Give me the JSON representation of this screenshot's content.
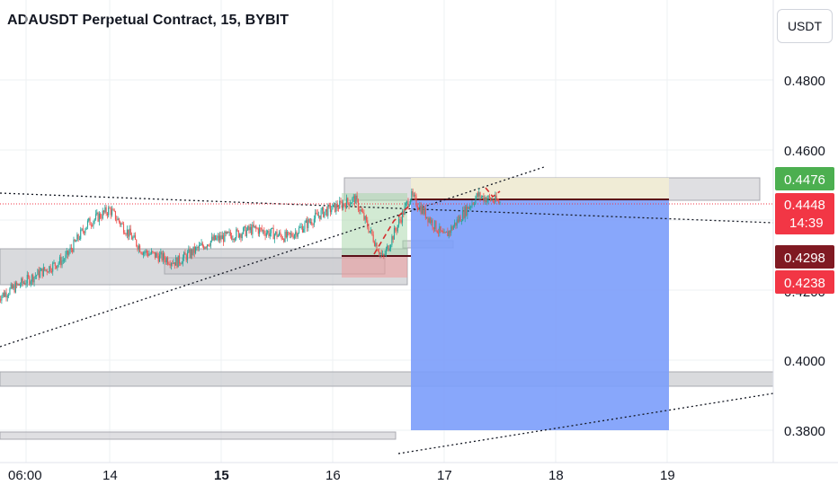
{
  "header": {
    "title": "ADAUSDT Perpetual Contract, 15, BYBIT"
  },
  "currency_button": {
    "label": "USDT"
  },
  "badges": {
    "green": {
      "label": "0.4476",
      "color": "#4caf50"
    },
    "current": {
      "label": "0.4448",
      "timer": "14:39",
      "color": "#f23645"
    },
    "dark": {
      "label": "0.4298",
      "color": "#801922"
    },
    "red": {
      "label": "0.4238",
      "color": "#f23645"
    }
  },
  "chart_data": {
    "type": "candlestick",
    "symbol": "ADAUSDT",
    "exchange": "BYBIT",
    "interval": "15",
    "y_axis": {
      "ticks": [
        0.48,
        0.46,
        0.4,
        0.38
      ],
      "tick_labels": [
        "0.4800",
        "0.4600",
        "0.4000",
        "0.3800"
      ]
    },
    "x_axis": {
      "tick_labels": [
        "06:00",
        "14",
        "15",
        "16",
        "17",
        "18",
        "19"
      ],
      "bold_label": "15"
    },
    "price_levels": {
      "green_label": 0.4476,
      "last_price": 0.4448,
      "dark_level": 0.4298,
      "red_level": 0.4238
    },
    "colors": {
      "up": "#26a69a",
      "down": "#ef5350",
      "position_loss": "#7b9dfb",
      "position_profit": "#f3efd4",
      "zone": "#c9cace"
    },
    "candles_approx": [
      {
        "day": 13.35,
        "close": 0.4245
      },
      {
        "day": 13.6,
        "close": 0.429
      },
      {
        "day": 13.8,
        "close": 0.439
      },
      {
        "day": 14.0,
        "close": 0.443
      },
      {
        "day": 14.3,
        "close": 0.431
      },
      {
        "day": 14.6,
        "close": 0.428
      },
      {
        "day": 14.9,
        "close": 0.434
      },
      {
        "day": 15.3,
        "close": 0.4375
      },
      {
        "day": 15.6,
        "close": 0.435
      },
      {
        "day": 15.9,
        "close": 0.442
      },
      {
        "day": 16.2,
        "close": 0.446
      },
      {
        "day": 16.45,
        "close": 0.429
      },
      {
        "day": 16.7,
        "close": 0.447
      },
      {
        "day": 17.0,
        "close": 0.435
      },
      {
        "day": 17.3,
        "close": 0.447
      },
      {
        "day": 17.5,
        "close": 0.445
      }
    ]
  }
}
